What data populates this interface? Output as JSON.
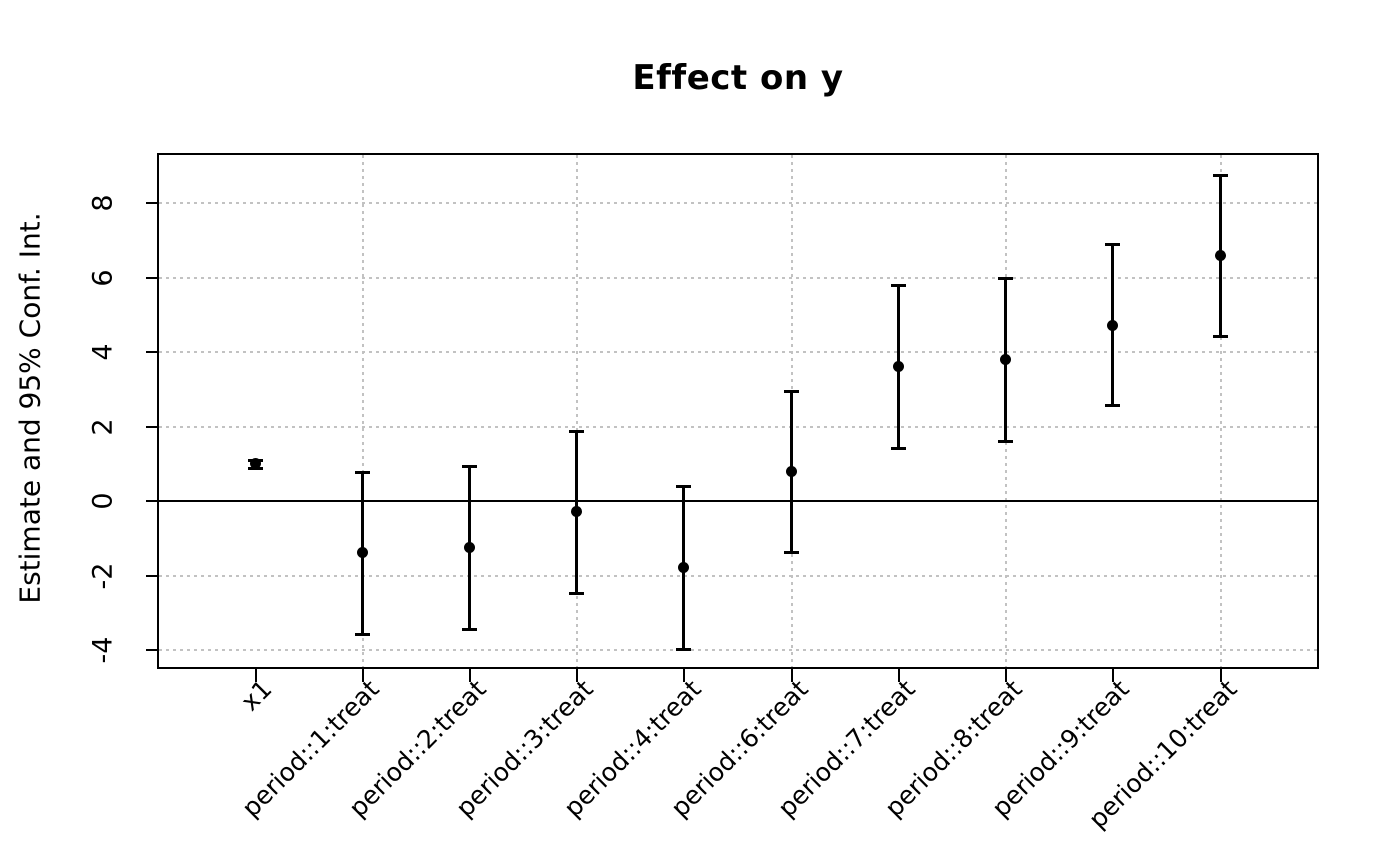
{
  "chart_data": {
    "type": "scatter",
    "subtype": "coefficient-plot-errorbars",
    "title": "Effect on y",
    "ylabel": "Estimate and 95% Conf. Int.",
    "xlabel": "",
    "categories": [
      "x1",
      "period::1:treat",
      "period::2:treat",
      "period::3:treat",
      "period::4:treat",
      "period::6:treat",
      "period::7:treat",
      "period::8:treat",
      "period::9:treat",
      "period::10:treat"
    ],
    "estimates": [
      1.0,
      -1.4,
      -1.25,
      -0.3,
      -1.8,
      0.78,
      3.6,
      3.8,
      4.7,
      6.6
    ],
    "ci_low": [
      0.88,
      -3.6,
      -3.45,
      -2.5,
      -4.0,
      -1.4,
      1.4,
      1.6,
      2.55,
      4.4
    ],
    "ci_high": [
      1.12,
      0.8,
      0.95,
      1.9,
      0.4,
      2.95,
      5.8,
      6.0,
      6.9,
      8.75
    ],
    "yticks": [
      -4,
      -2,
      0,
      2,
      4,
      6,
      8
    ],
    "ylim": [
      -4.45,
      9.3
    ],
    "xlim": [
      0.1,
      10.9
    ],
    "zero_line_at": 0,
    "grid": {
      "horizontal_at": [
        -4,
        -2,
        2,
        4,
        6,
        8
      ],
      "vertical_at_category_index": [
        2,
        4,
        6,
        8,
        10
      ],
      "style": "dotted"
    },
    "legend_position": "none",
    "colors": {
      "points": "#000000",
      "error_bars": "#000000",
      "grid": "#c2c2c2",
      "axis": "#000000",
      "background": "#ffffff"
    }
  }
}
